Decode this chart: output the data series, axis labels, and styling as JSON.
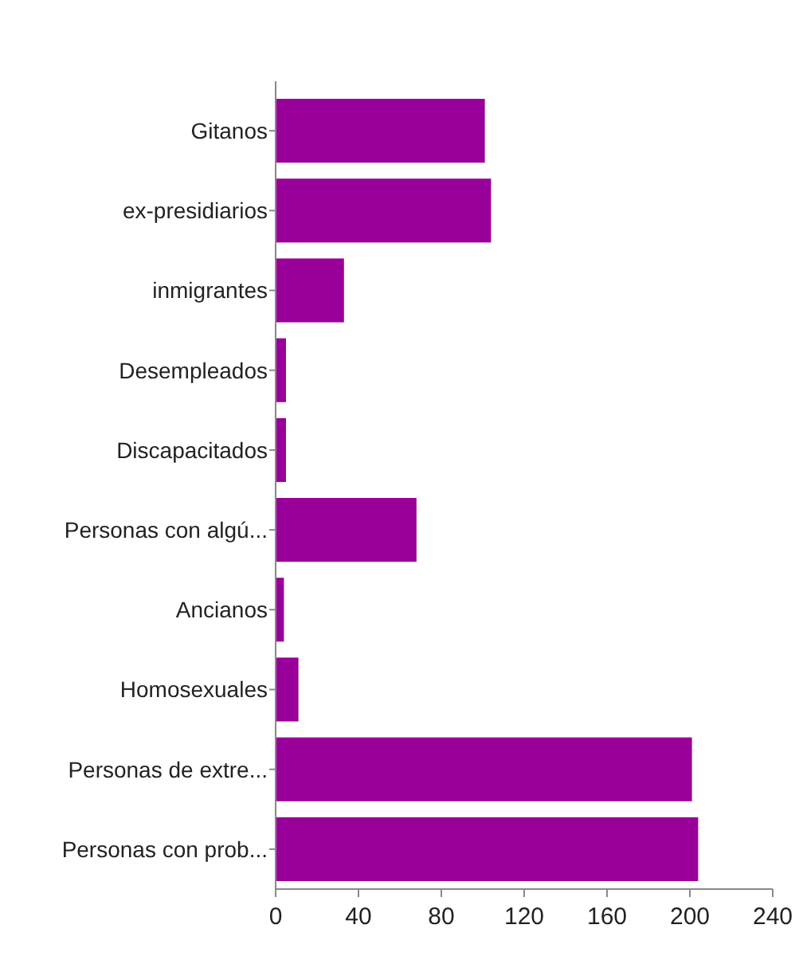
{
  "chart_data": {
    "type": "bar",
    "orientation": "horizontal",
    "categories": [
      "Gitanos",
      "ex-presidiarios",
      "inmigrantes",
      "Desempleados",
      "Discapacitados",
      "Personas con algú...",
      "Ancianos",
      "Homosexuales",
      "Personas de extre...",
      "Personas con prob..."
    ],
    "values": [
      101,
      104,
      33,
      5,
      5,
      68,
      4,
      11,
      201,
      204
    ],
    "color": "#990099",
    "xlim": [
      0,
      240
    ],
    "xticks": [
      0,
      40,
      80,
      120,
      160,
      200,
      240
    ],
    "grid": false
  }
}
